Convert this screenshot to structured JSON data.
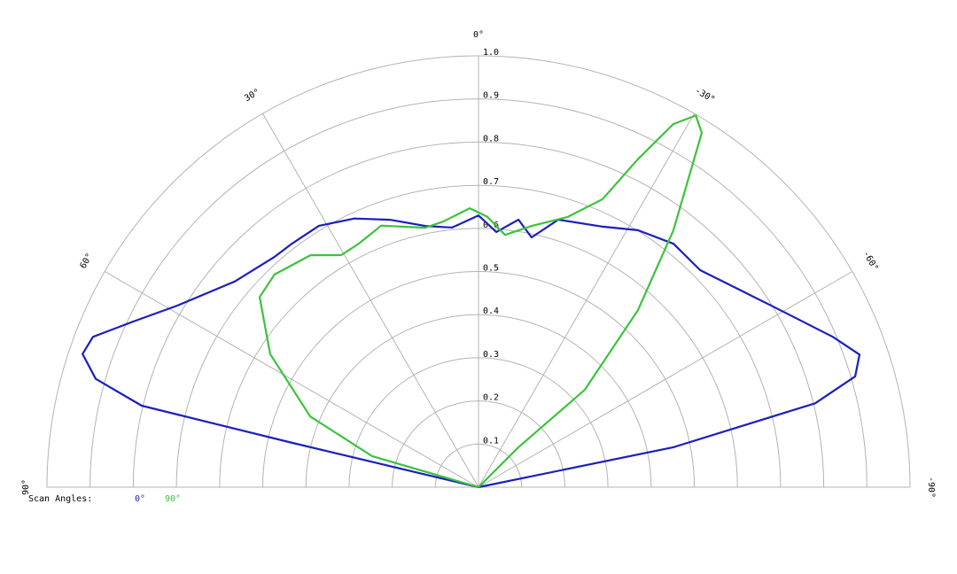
{
  "chart_data": {
    "type": "polar",
    "rlim": [
      0,
      1
    ],
    "rticks": [
      0.1,
      0.2,
      0.3,
      0.4,
      0.5,
      0.6,
      0.7,
      0.8,
      0.9,
      {
        "value": 1,
        "label": "1.0"
      }
    ],
    "thetaticks": [
      {
        "value": 90,
        "label": "90°"
      },
      {
        "value": 60,
        "label": "60°"
      },
      {
        "value": 30,
        "label": "30°"
      },
      {
        "value": 0,
        "label": "0°"
      },
      {
        "value": -30,
        "label": "-30°"
      },
      {
        "value": -60,
        "label": "-60°"
      },
      {
        "value": -90,
        "label": "-90°"
      }
    ],
    "legend_title": "Scan Angles:",
    "series": [
      {
        "name": "0°",
        "color": "#1a1fbf",
        "theta": [
          90,
          76.6,
          76.4,
          74.2,
          71.4,
          68.7,
          64.4,
          58.9,
          49.8,
          41.5,
          37.4,
          31.4,
          24.8,
          18.3,
          11.5,
          5.8,
          0,
          -4.0,
          -8.5,
          -12,
          -16.6,
          -25.5,
          -31.8,
          -38.7,
          -45.6,
          -52.2,
          -59.5,
          -67,
          -70.8,
          -73.6,
          -76,
          -78.4,
          -90
        ],
        "values": [
          0,
          0.443,
          0.803,
          0.922,
          0.968,
          0.959,
          0.888,
          0.815,
          0.739,
          0.713,
          0.711,
          0.71,
          0.686,
          0.653,
          0.618,
          0.605,
          0.63,
          0.593,
          0.627,
          0.592,
          0.647,
          0.669,
          0.701,
          0.723,
          0.719,
          0.754,
          0.81,
          0.892,
          0.935,
          0.91,
          0.804,
          0.461,
          0
        ]
      },
      {
        "name": "90°",
        "color": "#3cc23c",
        "theta": [
          90,
          73.7,
          67.2,
          57.4,
          49,
          43.8,
          35.9,
          30.6,
          26.1,
          20.4,
          11.6,
          7.6,
          1.8,
          -1.9,
          -6,
          -11.5,
          -18.2,
          -23.3,
          -25.9,
          -28.2,
          -30.3,
          -32.2,
          -37.2,
          -42,
          -47.5,
          -45,
          -45
        ],
        "values": [
          0,
          0.257,
          0.423,
          0.573,
          0.672,
          0.683,
          0.664,
          0.625,
          0.629,
          0.647,
          0.614,
          0.621,
          0.647,
          0.627,
          0.588,
          0.618,
          0.659,
          0.727,
          0.845,
          0.955,
          0.998,
          0.971,
          0.747,
          0.552,
          0.334,
          0.131,
          0
        ]
      }
    ]
  }
}
